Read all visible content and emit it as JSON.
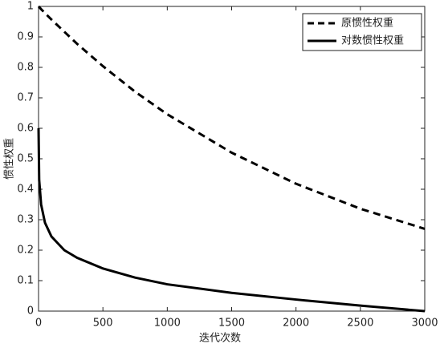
{
  "chart_data": {
    "type": "line",
    "xlabel": "迭代次数",
    "ylabel": "惯性权重",
    "x": [
      0,
      5,
      20,
      50,
      100,
      200,
      300,
      500,
      750,
      1000,
      1500,
      2000,
      2500,
      3000
    ],
    "series": [
      {
        "name": "原惯性权重",
        "color": "#000000",
        "line_style": "dashed",
        "values": [
          1,
          0.998,
          0.991,
          0.978,
          0.957,
          0.917,
          0.877,
          0.804,
          0.72,
          0.646,
          0.52,
          0.418,
          0.336,
          0.27
        ]
      },
      {
        "name": "对数惯性权重",
        "color": "#000000",
        "line_style": "solid",
        "values": [
          0.6,
          0.43,
          0.35,
          0.29,
          0.245,
          0.2,
          0.175,
          0.14,
          0.11,
          0.088,
          0.06,
          0.038,
          0.018,
          0
        ]
      }
    ],
    "xlim": [
      0,
      3000
    ],
    "xticks": [
      0,
      500,
      1000,
      1500,
      2000,
      2500,
      3000
    ],
    "ylim": [
      0,
      1
    ],
    "yticks": [
      0,
      0.1,
      0.2,
      0.3,
      0.4,
      0.5,
      0.6,
      0.7,
      0.8,
      0.9,
      1
    ],
    "grid": false,
    "legend": "top-right"
  }
}
